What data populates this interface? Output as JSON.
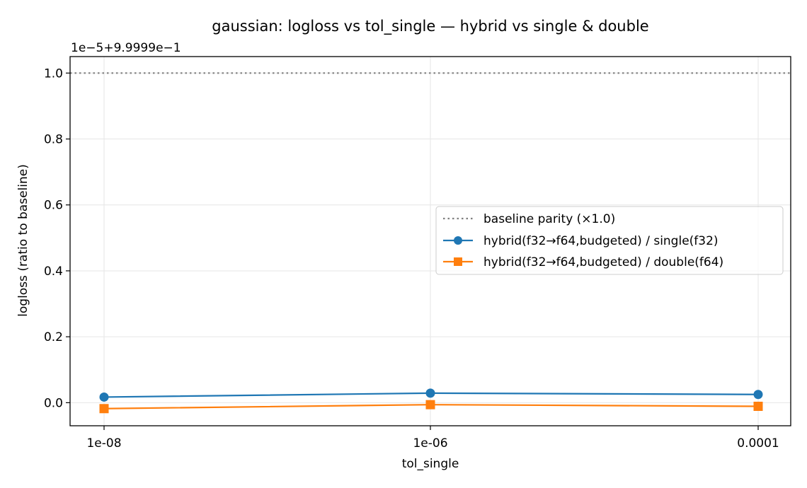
{
  "chart_data": {
    "type": "line",
    "title": "gaussian: logloss vs tol_single — hybrid vs single & double",
    "xlabel": "tol_single",
    "ylabel": "logloss (ratio to baseline)",
    "offset_text": "1e−5+9.9999e−1",
    "categories": [
      "1e-08",
      "1e-06",
      "0.0001"
    ],
    "ylim": [
      -0.07,
      1.05
    ],
    "yticks": [
      0.0,
      0.2,
      0.4,
      0.6,
      0.8,
      1.0
    ],
    "ytick_labels": [
      "0.0",
      "0.2",
      "0.4",
      "0.6",
      "0.8",
      "1.0"
    ],
    "grid": true,
    "legend_position": "center-right",
    "baseline": {
      "name": "baseline parity (×1.0)",
      "value": 1.0,
      "color": "#808080",
      "style": "dotted"
    },
    "series": [
      {
        "name": "hybrid(f32→f64,budgeted) / single(f32)",
        "values": [
          0.017,
          0.029,
          0.025
        ],
        "color": "#1f77b4",
        "marker": "circle"
      },
      {
        "name": "hybrid(f32→f64,budgeted) / double(f64)",
        "values": [
          -0.018,
          -0.006,
          -0.011
        ],
        "color": "#ff7f0e",
        "marker": "square"
      }
    ]
  }
}
